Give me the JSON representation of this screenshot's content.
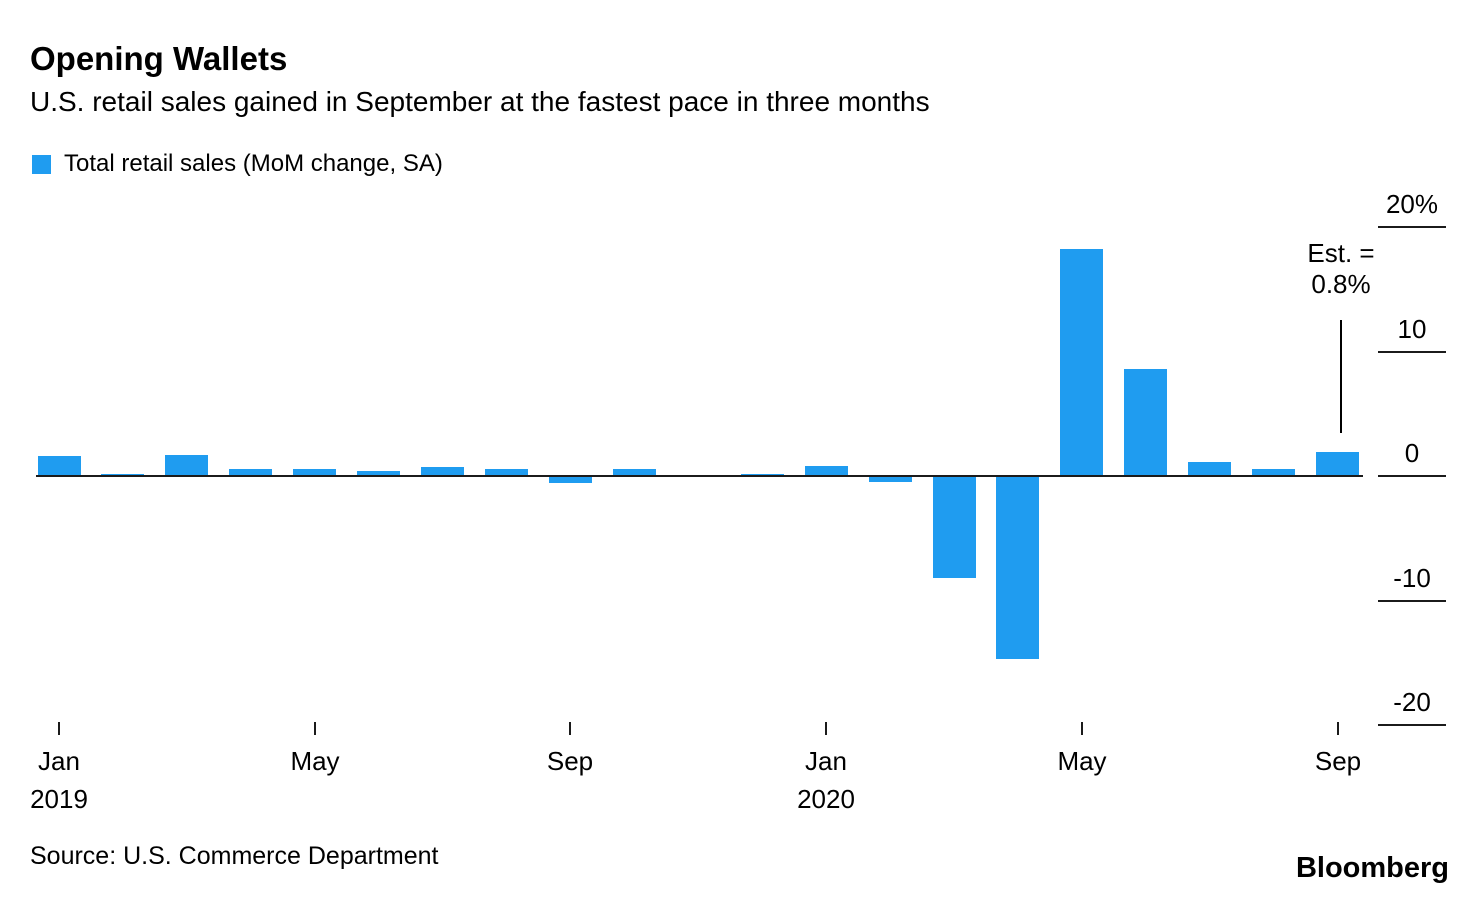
{
  "header": {
    "title": "Opening Wallets",
    "subtitle": "U.S. retail sales gained in September at the fastest pace in three months"
  },
  "legend": {
    "label": "Total retail sales (MoM change, SA)",
    "swatch_color": "#1f9cf0"
  },
  "annotation": {
    "line1": "Est. =",
    "line2": "0.8%"
  },
  "footer": {
    "source": "Source: U.S. Commerce Department",
    "brand": "Bloomberg"
  },
  "colors": {
    "bar": "#1f9cf0",
    "axis": "#1b1b1b",
    "text": "#000000",
    "background": "#ffffff"
  },
  "chart_data": {
    "type": "bar",
    "title": "Opening Wallets",
    "subtitle": "U.S. retail sales gained in September at the fastest pace in three months",
    "series_name": "Total retail sales (MoM change, SA)",
    "unit": "% (month-over-month change, seasonally adjusted)",
    "categories": [
      "Jan 2019",
      "Feb 2019",
      "Mar 2019",
      "Apr 2019",
      "May 2019",
      "Jun 2019",
      "Jul 2019",
      "Aug 2019",
      "Sep 2019",
      "Oct 2019",
      "Nov 2019",
      "Dec 2019",
      "Jan 2020",
      "Feb 2020",
      "Mar 2020",
      "Apr 2020",
      "May 2020",
      "Jun 2020",
      "Jul 2020",
      "Aug 2020",
      "Sep 2020"
    ],
    "values": [
      1.6,
      0.2,
      1.7,
      0.6,
      0.6,
      0.4,
      0.7,
      0.6,
      -0.5,
      0.6,
      0.1,
      0.2,
      0.8,
      -0.4,
      -8.1,
      -14.6,
      18.2,
      8.6,
      1.1,
      0.6,
      1.9
    ],
    "ylim": [
      -20,
      20
    ],
    "grid": false,
    "legend_position": "top-left",
    "y_axis_side": "right",
    "y_ticks": [
      {
        "value": 20,
        "label": "20%"
      },
      {
        "value": 10,
        "label": "10"
      },
      {
        "value": 0,
        "label": "0"
      },
      {
        "value": -10,
        "label": "-10"
      },
      {
        "value": -20,
        "label": "-20"
      }
    ],
    "x_ticks": [
      {
        "index": 0,
        "label": "Jan",
        "year": "2019"
      },
      {
        "index": 4,
        "label": "May",
        "year": ""
      },
      {
        "index": 8,
        "label": "Sep",
        "year": ""
      },
      {
        "index": 12,
        "label": "Jan",
        "year": "2020"
      },
      {
        "index": 16,
        "label": "May",
        "year": ""
      },
      {
        "index": 20,
        "label": "Sep",
        "year": ""
      }
    ],
    "estimate_annotation": {
      "text": "Est. = 0.8%",
      "applies_to": "Sep 2020",
      "value": 0.8
    }
  }
}
